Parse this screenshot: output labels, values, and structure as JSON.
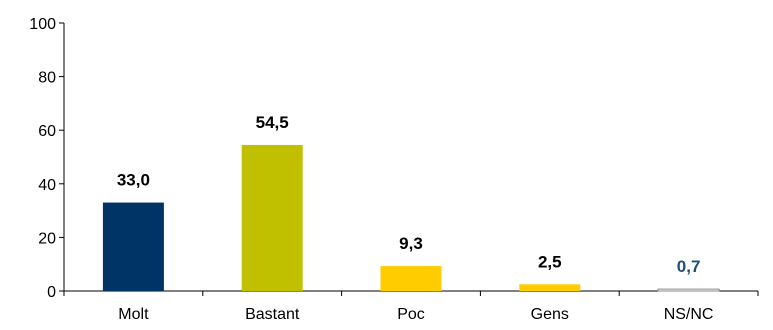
{
  "chart_data": {
    "type": "bar",
    "categories": [
      "Molt",
      "Bastant",
      "Poc",
      "Gens",
      "NS/NC"
    ],
    "values": [
      33.0,
      54.5,
      9.3,
      2.5,
      0.7
    ],
    "value_labels": [
      "33,0",
      "54,5",
      "9,3",
      "2,5",
      "0,7"
    ],
    "colors": [
      "#003366",
      "#c0c000",
      "#ffcc00",
      "#ffcc00",
      "#ffffff"
    ],
    "label_colors": [
      "#000000",
      "#000000",
      "#000000",
      "#000000",
      "#1f4e79"
    ],
    "ylim": [
      0,
      100
    ],
    "yticks": [
      0,
      20,
      40,
      60,
      80,
      100
    ],
    "title": "",
    "xlabel": "",
    "ylabel": "",
    "grid": false,
    "legend": "none"
  }
}
